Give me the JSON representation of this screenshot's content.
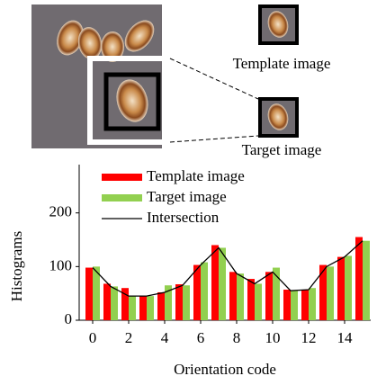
{
  "figure": {
    "template_label": "Template image",
    "target_label": "Target image"
  },
  "chart_data": {
    "type": "bar",
    "x": [
      0,
      1,
      2,
      3,
      4,
      5,
      6,
      7,
      8,
      9,
      10,
      11,
      12,
      13,
      14,
      15
    ],
    "series": [
      {
        "name": "Template image",
        "color": "#ff0000",
        "values": [
          98,
          68,
          60,
          45,
          52,
          67,
          103,
          140,
          90,
          77,
          90,
          57,
          57,
          103,
          118,
          155
        ]
      },
      {
        "name": "Target image",
        "color": "#92d050",
        "values": [
          100,
          63,
          45,
          45,
          65,
          65,
          108,
          135,
          87,
          68,
          98,
          55,
          60,
          100,
          120,
          148
        ]
      },
      {
        "name": "Intersection",
        "color": "#000000",
        "type": "line",
        "values": [
          98,
          63,
          45,
          45,
          52,
          65,
          103,
          135,
          87,
          68,
          90,
          55,
          57,
          100,
          118,
          148
        ]
      }
    ],
    "xlabel": "Orientation code",
    "ylabel": "Histograms",
    "xlim": [
      -0.75,
      15.45
    ],
    "xticks": [
      0,
      2,
      4,
      6,
      8,
      10,
      12,
      14
    ],
    "ylim": [
      0,
      290
    ],
    "yticks": [
      0,
      100,
      200
    ],
    "legend": "upper-left"
  }
}
